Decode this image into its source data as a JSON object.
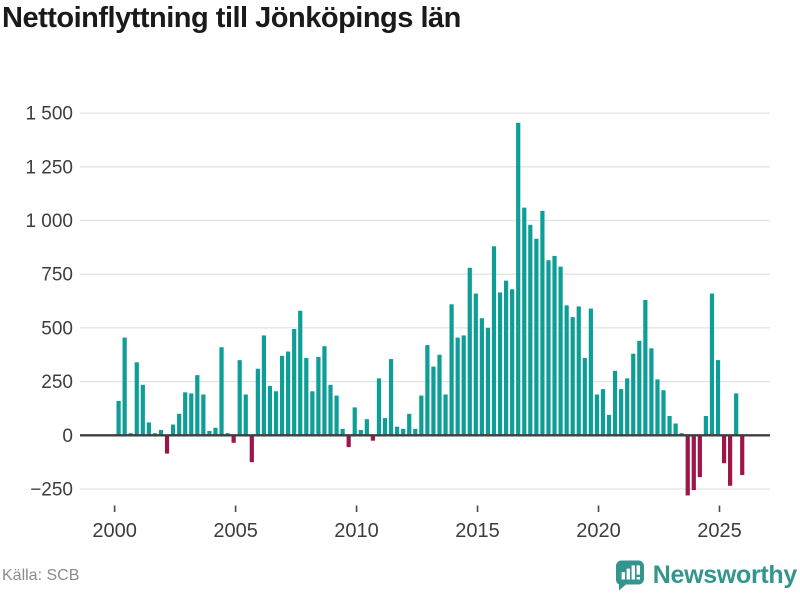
{
  "title": "Nettoinflyttning till Jönköpings län",
  "source": "Källa: SCB",
  "brand": {
    "name": "Newsworthy",
    "color": "#33958D"
  },
  "chart_data": {
    "type": "bar",
    "period": "quarterly",
    "start_year": 2000,
    "values": [
      160,
      455,
      10,
      340,
      235,
      60,
      10,
      25,
      -85,
      50,
      100,
      200,
      195,
      280,
      190,
      20,
      35,
      410,
      10,
      -35,
      350,
      190,
      -125,
      310,
      465,
      230,
      205,
      370,
      390,
      495,
      580,
      360,
      205,
      365,
      415,
      235,
      185,
      30,
      -55,
      130,
      25,
      75,
      -25,
      265,
      80,
      355,
      40,
      30,
      100,
      30,
      185,
      420,
      320,
      375,
      190,
      610,
      455,
      465,
      780,
      660,
      545,
      500,
      880,
      665,
      720,
      680,
      1455,
      1060,
      980,
      915,
      1045,
      815,
      835,
      785,
      605,
      550,
      600,
      360,
      590,
      190,
      215,
      95,
      300,
      215,
      265,
      380,
      440,
      630,
      405,
      260,
      210,
      90,
      55,
      10,
      -280,
      -255,
      -195,
      90,
      660,
      350,
      -130,
      -235,
      195,
      -185
    ],
    "xticks": [
      2000,
      2005,
      2010,
      2015,
      2020,
      2025
    ],
    "yticks": [
      1500,
      1250,
      1000,
      750,
      500,
      250,
      0,
      -250
    ],
    "ylim": [
      -330,
      1500
    ],
    "grid": true,
    "legend": "none",
    "colors": {
      "positive": "#0D9E97",
      "negative": "#9E1548",
      "zero_line": "#3F3F3F",
      "grid_line": "#E3E3E3",
      "tick_mark": "#4A4A4A",
      "axis_label": "#3D3D3D"
    }
  }
}
